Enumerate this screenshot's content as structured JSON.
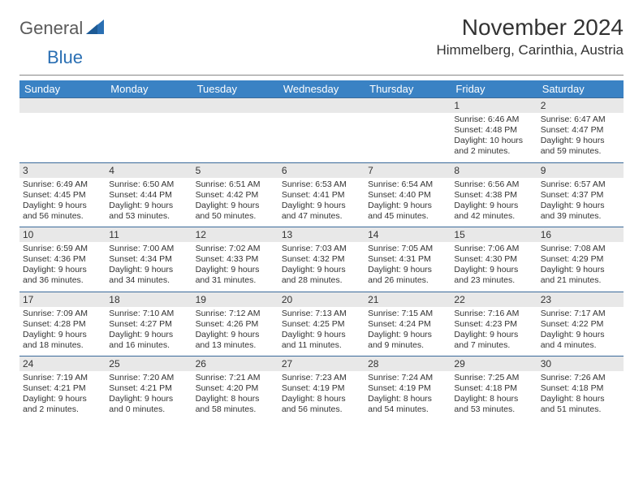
{
  "logo": {
    "text1": "General",
    "text2": "Blue"
  },
  "title": "November 2024",
  "location": "Himmelberg, Carinthia, Austria",
  "colors": {
    "header_bg": "#3a82c4",
    "header_text": "#ffffff",
    "daynum_bg": "#e8e8e8",
    "border": "#3a6a9a",
    "logo_gray": "#5a5a5a",
    "logo_blue": "#2a6fb3"
  },
  "weekdays": [
    "Sunday",
    "Monday",
    "Tuesday",
    "Wednesday",
    "Thursday",
    "Friday",
    "Saturday"
  ],
  "weeks": [
    [
      {
        "day": "",
        "sunrise": "",
        "sunset": "",
        "daylight": ""
      },
      {
        "day": "",
        "sunrise": "",
        "sunset": "",
        "daylight": ""
      },
      {
        "day": "",
        "sunrise": "",
        "sunset": "",
        "daylight": ""
      },
      {
        "day": "",
        "sunrise": "",
        "sunset": "",
        "daylight": ""
      },
      {
        "day": "",
        "sunrise": "",
        "sunset": "",
        "daylight": ""
      },
      {
        "day": "1",
        "sunrise": "Sunrise: 6:46 AM",
        "sunset": "Sunset: 4:48 PM",
        "daylight": "Daylight: 10 hours and 2 minutes."
      },
      {
        "day": "2",
        "sunrise": "Sunrise: 6:47 AM",
        "sunset": "Sunset: 4:47 PM",
        "daylight": "Daylight: 9 hours and 59 minutes."
      }
    ],
    [
      {
        "day": "3",
        "sunrise": "Sunrise: 6:49 AM",
        "sunset": "Sunset: 4:45 PM",
        "daylight": "Daylight: 9 hours and 56 minutes."
      },
      {
        "day": "4",
        "sunrise": "Sunrise: 6:50 AM",
        "sunset": "Sunset: 4:44 PM",
        "daylight": "Daylight: 9 hours and 53 minutes."
      },
      {
        "day": "5",
        "sunrise": "Sunrise: 6:51 AM",
        "sunset": "Sunset: 4:42 PM",
        "daylight": "Daylight: 9 hours and 50 minutes."
      },
      {
        "day": "6",
        "sunrise": "Sunrise: 6:53 AM",
        "sunset": "Sunset: 4:41 PM",
        "daylight": "Daylight: 9 hours and 47 minutes."
      },
      {
        "day": "7",
        "sunrise": "Sunrise: 6:54 AM",
        "sunset": "Sunset: 4:40 PM",
        "daylight": "Daylight: 9 hours and 45 minutes."
      },
      {
        "day": "8",
        "sunrise": "Sunrise: 6:56 AM",
        "sunset": "Sunset: 4:38 PM",
        "daylight": "Daylight: 9 hours and 42 minutes."
      },
      {
        "day": "9",
        "sunrise": "Sunrise: 6:57 AM",
        "sunset": "Sunset: 4:37 PM",
        "daylight": "Daylight: 9 hours and 39 minutes."
      }
    ],
    [
      {
        "day": "10",
        "sunrise": "Sunrise: 6:59 AM",
        "sunset": "Sunset: 4:36 PM",
        "daylight": "Daylight: 9 hours and 36 minutes."
      },
      {
        "day": "11",
        "sunrise": "Sunrise: 7:00 AM",
        "sunset": "Sunset: 4:34 PM",
        "daylight": "Daylight: 9 hours and 34 minutes."
      },
      {
        "day": "12",
        "sunrise": "Sunrise: 7:02 AM",
        "sunset": "Sunset: 4:33 PM",
        "daylight": "Daylight: 9 hours and 31 minutes."
      },
      {
        "day": "13",
        "sunrise": "Sunrise: 7:03 AM",
        "sunset": "Sunset: 4:32 PM",
        "daylight": "Daylight: 9 hours and 28 minutes."
      },
      {
        "day": "14",
        "sunrise": "Sunrise: 7:05 AM",
        "sunset": "Sunset: 4:31 PM",
        "daylight": "Daylight: 9 hours and 26 minutes."
      },
      {
        "day": "15",
        "sunrise": "Sunrise: 7:06 AM",
        "sunset": "Sunset: 4:30 PM",
        "daylight": "Daylight: 9 hours and 23 minutes."
      },
      {
        "day": "16",
        "sunrise": "Sunrise: 7:08 AM",
        "sunset": "Sunset: 4:29 PM",
        "daylight": "Daylight: 9 hours and 21 minutes."
      }
    ],
    [
      {
        "day": "17",
        "sunrise": "Sunrise: 7:09 AM",
        "sunset": "Sunset: 4:28 PM",
        "daylight": "Daylight: 9 hours and 18 minutes."
      },
      {
        "day": "18",
        "sunrise": "Sunrise: 7:10 AM",
        "sunset": "Sunset: 4:27 PM",
        "daylight": "Daylight: 9 hours and 16 minutes."
      },
      {
        "day": "19",
        "sunrise": "Sunrise: 7:12 AM",
        "sunset": "Sunset: 4:26 PM",
        "daylight": "Daylight: 9 hours and 13 minutes."
      },
      {
        "day": "20",
        "sunrise": "Sunrise: 7:13 AM",
        "sunset": "Sunset: 4:25 PM",
        "daylight": "Daylight: 9 hours and 11 minutes."
      },
      {
        "day": "21",
        "sunrise": "Sunrise: 7:15 AM",
        "sunset": "Sunset: 4:24 PM",
        "daylight": "Daylight: 9 hours and 9 minutes."
      },
      {
        "day": "22",
        "sunrise": "Sunrise: 7:16 AM",
        "sunset": "Sunset: 4:23 PM",
        "daylight": "Daylight: 9 hours and 7 minutes."
      },
      {
        "day": "23",
        "sunrise": "Sunrise: 7:17 AM",
        "sunset": "Sunset: 4:22 PM",
        "daylight": "Daylight: 9 hours and 4 minutes."
      }
    ],
    [
      {
        "day": "24",
        "sunrise": "Sunrise: 7:19 AM",
        "sunset": "Sunset: 4:21 PM",
        "daylight": "Daylight: 9 hours and 2 minutes."
      },
      {
        "day": "25",
        "sunrise": "Sunrise: 7:20 AM",
        "sunset": "Sunset: 4:21 PM",
        "daylight": "Daylight: 9 hours and 0 minutes."
      },
      {
        "day": "26",
        "sunrise": "Sunrise: 7:21 AM",
        "sunset": "Sunset: 4:20 PM",
        "daylight": "Daylight: 8 hours and 58 minutes."
      },
      {
        "day": "27",
        "sunrise": "Sunrise: 7:23 AM",
        "sunset": "Sunset: 4:19 PM",
        "daylight": "Daylight: 8 hours and 56 minutes."
      },
      {
        "day": "28",
        "sunrise": "Sunrise: 7:24 AM",
        "sunset": "Sunset: 4:19 PM",
        "daylight": "Daylight: 8 hours and 54 minutes."
      },
      {
        "day": "29",
        "sunrise": "Sunrise: 7:25 AM",
        "sunset": "Sunset: 4:18 PM",
        "daylight": "Daylight: 8 hours and 53 minutes."
      },
      {
        "day": "30",
        "sunrise": "Sunrise: 7:26 AM",
        "sunset": "Sunset: 4:18 PM",
        "daylight": "Daylight: 8 hours and 51 minutes."
      }
    ]
  ]
}
